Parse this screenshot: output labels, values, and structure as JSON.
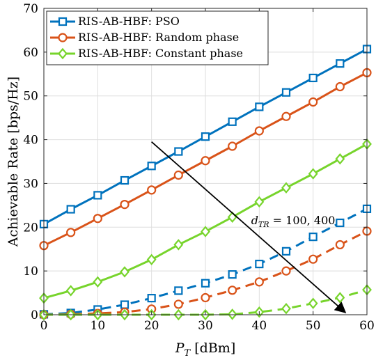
{
  "chart_data": {
    "type": "line",
    "title": "",
    "xlabel": "P_T [dBm]",
    "ylabel": "Achievable Rate [bps/Hz]",
    "xlim": [
      0,
      60
    ],
    "ylim": [
      0,
      70
    ],
    "xticks": [
      0,
      10,
      20,
      30,
      40,
      50,
      60
    ],
    "yticks": [
      0,
      10,
      20,
      30,
      40,
      50,
      60,
      70
    ],
    "grid": true,
    "legend_position": "top-left",
    "x": [
      0,
      5,
      10,
      15,
      20,
      25,
      30,
      35,
      40,
      45,
      50,
      55,
      60
    ],
    "series": [
      {
        "name": "RIS-AB-HBF: PSO",
        "color": "#0072BD",
        "marker": "square",
        "dash": "solid",
        "values": [
          20.7,
          24.1,
          27.3,
          30.7,
          34.0,
          37.3,
          40.7,
          44.1,
          47.5,
          50.8,
          54.1,
          57.4,
          60.7
        ]
      },
      {
        "name": "RIS-AB-HBF: Random phase",
        "color": "#D95319",
        "marker": "circle",
        "dash": "solid",
        "values": [
          15.8,
          18.8,
          22.0,
          25.2,
          28.5,
          31.9,
          35.2,
          38.5,
          42.0,
          45.3,
          48.6,
          52.1,
          55.3
        ]
      },
      {
        "name": "RIS-AB-HBF: Constant phase",
        "color": "#77D42C",
        "marker": "diamond",
        "dash": "solid",
        "values": [
          3.8,
          5.5,
          7.5,
          9.8,
          12.6,
          16.0,
          19.0,
          22.3,
          25.8,
          29.0,
          32.2,
          35.6,
          39.0
        ]
      },
      {
        "color": "#0072BD",
        "marker": "square",
        "dash": "dashed",
        "values": [
          0.1,
          0.4,
          1.2,
          2.3,
          3.8,
          5.5,
          7.2,
          9.2,
          11.6,
          14.5,
          17.8,
          21.0,
          24.2
        ]
      },
      {
        "color": "#D95319",
        "marker": "circle",
        "dash": "dashed",
        "values": [
          0.0,
          0.1,
          0.3,
          0.6,
          1.3,
          2.4,
          3.9,
          5.6,
          7.5,
          10.0,
          12.7,
          16.0,
          19.1
        ]
      },
      {
        "color": "#77D42C",
        "marker": "diamond",
        "dash": "dashed",
        "values": [
          0.0,
          0.0,
          0.0,
          0.0,
          0.0,
          0.0,
          0.0,
          0.1,
          0.6,
          1.4,
          2.6,
          3.9,
          5.7
        ]
      }
    ],
    "annotation": {
      "text": "d_TR = 100, 400",
      "arrow_from": [
        20,
        39.5
      ],
      "arrow_to": [
        56,
        0.5
      ],
      "text_at": [
        38.5,
        20.7
      ]
    }
  }
}
